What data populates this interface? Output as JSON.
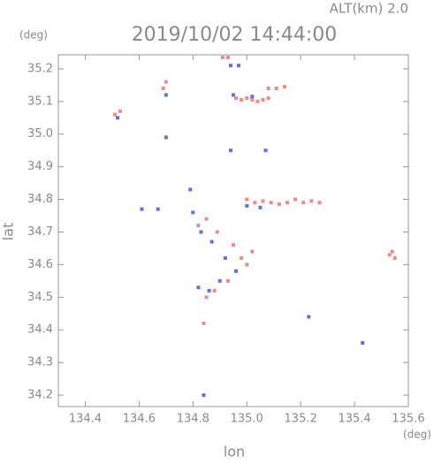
{
  "chart_data": {
    "type": "scatter",
    "header": "ALT(km)  2.0",
    "title": "2019/10/02 14:44:00",
    "y_unit": "(deg)",
    "x_unit": "(deg)",
    "xlabel": "lon",
    "ylabel": "lat",
    "xlim": [
      134.3,
      135.6
    ],
    "ylim": [
      34.165,
      35.243
    ],
    "xticks": [
      134.4,
      134.6,
      134.8,
      {
        "value": 135,
        "label": "135.0"
      },
      135.2,
      135.4,
      135.6
    ],
    "yticks": [
      34.2,
      34.3,
      34.4,
      34.5,
      34.6,
      34.7,
      34.8,
      34.9,
      {
        "value": 35,
        "label": "35.0"
      },
      35.1,
      35.2
    ],
    "series": [
      {
        "color": "#f08a8a",
        "x": [
          134.96,
          134.98,
          135.0,
          135.02,
          135.04,
          135.06,
          135.08,
          135.0,
          135.03,
          135.06,
          135.09,
          135.12,
          135.15,
          135.18,
          135.21,
          135.24,
          135.27,
          135.08,
          135.11,
          135.14,
          134.91,
          134.93,
          135.53,
          135.55,
          135.54,
          134.82,
          134.85,
          134.89,
          134.95,
          134.98,
          135.0,
          135.02,
          134.93,
          134.88,
          134.85,
          134.84,
          134.51,
          134.53,
          134.69,
          134.7
        ],
        "y": [
          35.11,
          35.105,
          35.11,
          35.105,
          35.1,
          35.105,
          35.11,
          34.8,
          34.79,
          34.795,
          34.79,
          34.785,
          34.79,
          34.8,
          34.79,
          34.795,
          34.79,
          35.14,
          35.14,
          35.145,
          35.235,
          35.235,
          34.63,
          34.62,
          34.64,
          34.72,
          34.74,
          34.7,
          34.66,
          34.62,
          34.6,
          34.64,
          34.55,
          34.52,
          34.5,
          34.42,
          35.06,
          35.07,
          35.14,
          35.16
        ]
      },
      {
        "color": "#6a6ae8",
        "x": [
          134.94,
          134.97,
          134.95,
          135.02,
          134.7,
          134.94,
          135.07,
          135.0,
          135.05,
          134.61,
          134.67,
          134.8,
          134.83,
          134.87,
          134.92,
          134.96,
          134.9,
          134.86,
          134.82,
          135.23,
          135.43,
          134.84,
          134.52,
          134.7,
          134.79
        ],
        "y": [
          35.21,
          35.21,
          35.12,
          35.115,
          34.99,
          34.95,
          34.95,
          34.78,
          34.775,
          34.77,
          34.77,
          34.76,
          34.7,
          34.67,
          34.62,
          34.58,
          34.55,
          34.52,
          34.53,
          34.44,
          34.36,
          34.2,
          35.05,
          35.12,
          34.83
        ]
      }
    ]
  }
}
